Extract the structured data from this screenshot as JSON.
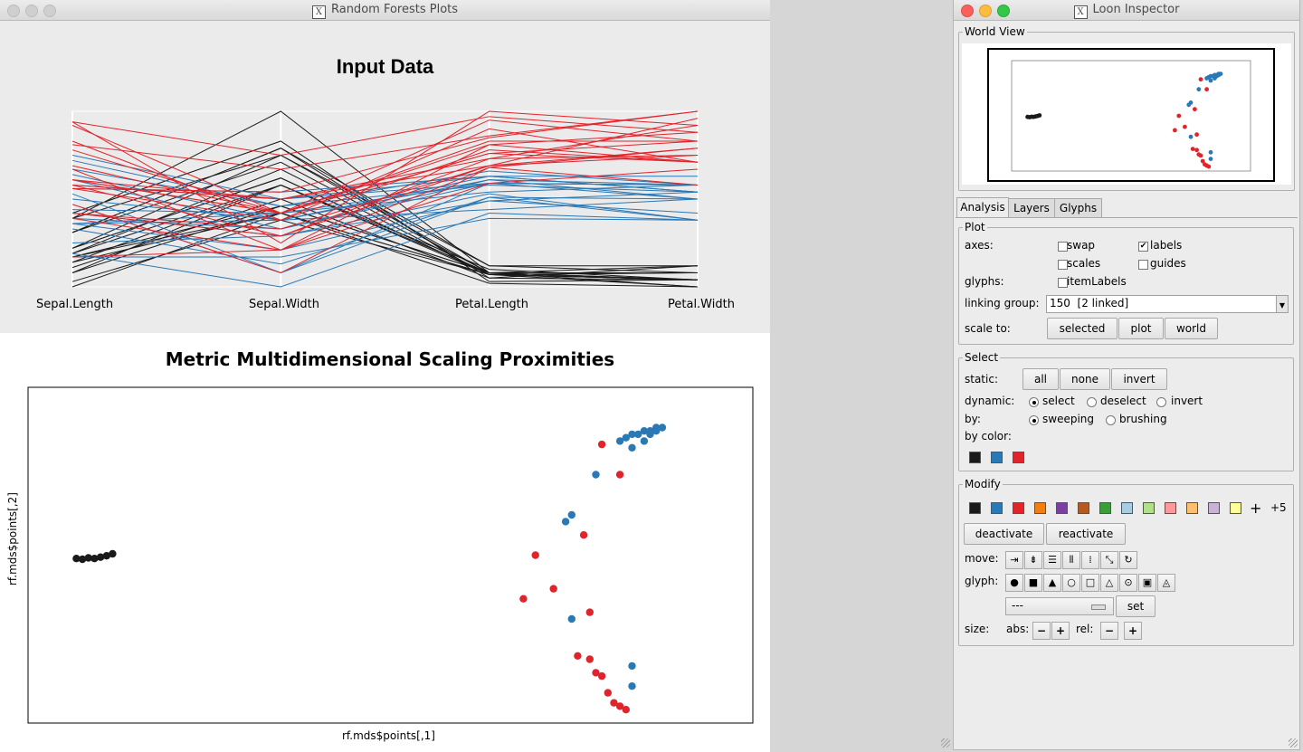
{
  "main_window": {
    "title": "Random Forests Plots",
    "top_plot": {
      "title": "Input Data",
      "axes": [
        "Sepal.Length",
        "Sepal.Width",
        "Petal.Length",
        "Petal.Width"
      ]
    },
    "bottom_plot": {
      "title": "Metric Multidimensional Scaling Proximities",
      "xlabel": "rf.mds$points[,1]",
      "ylabel": "rf.mds$points[,2]"
    }
  },
  "colors": {
    "black": "#1a1a1a",
    "blue": "#2a78b4",
    "red": "#e0242b"
  },
  "inspector": {
    "title": "Loon Inspector",
    "world_view_label": "World View",
    "tabs": [
      "Analysis",
      "Layers",
      "Glyphs"
    ],
    "plot_section": {
      "legend": "Plot",
      "axes_label": "axes:",
      "swap": "swap",
      "labels": "labels",
      "scales": "scales",
      "guides": "guides",
      "glyphs_label": "glyphs:",
      "item_labels": "itemLabels",
      "linking_label": "linking group:",
      "linking_value": "150  [2 linked]",
      "scale_to_label": "scale to:",
      "scale_buttons": [
        "selected",
        "plot",
        "world"
      ]
    },
    "select_section": {
      "legend": "Select",
      "static_label": "static:",
      "static_buttons": [
        "all",
        "none",
        "invert"
      ],
      "dynamic_label": "dynamic:",
      "dynamic_options": [
        "select",
        "deselect",
        "invert"
      ],
      "by_label": "by:",
      "by_options": [
        "sweeping",
        "brushing"
      ],
      "by_color_label": "by color:"
    },
    "modify_section": {
      "legend": "Modify",
      "palette": [
        "#1a1a1a",
        "#2a78b4",
        "#e0242b",
        "#f07f12",
        "#7a3fa0",
        "#b35a24",
        "#3b9e3b",
        "#a6cde3",
        "#b2df8a",
        "#fb9a99",
        "#fdbf6f",
        "#cab2d6",
        "#ffff99"
      ],
      "more_label": "+5",
      "deactivate": "deactivate",
      "reactivate": "reactivate",
      "move_label": "move:",
      "glyph_label": "glyph:",
      "glyph_select_value": "---",
      "set_label": "set",
      "size_label": "size:",
      "abs_label": "abs:",
      "rel_label": "rel:"
    }
  },
  "chart_data": [
    {
      "type": "line",
      "title": "Input Data",
      "x": [
        "Sepal.Length",
        "Sepal.Width",
        "Petal.Length",
        "Petal.Width"
      ],
      "series": [
        {
          "values": [
            [
              0.22,
              0.62,
              0.07,
              0.04
            ],
            [
              0.17,
              0.42,
              0.07,
              0.04
            ],
            [
              0.11,
              0.5,
              0.05,
              0.04
            ],
            [
              0.08,
              0.46,
              0.08,
              0.04
            ],
            [
              0.19,
              0.67,
              0.07,
              0.04
            ],
            [
              0.31,
              0.79,
              0.12,
              0.12
            ],
            [
              0.08,
              0.58,
              0.07,
              0.08
            ],
            [
              0.19,
              0.58,
              0.08,
              0.04
            ],
            [
              0.03,
              0.38,
              0.07,
              0.04
            ],
            [
              0.17,
              0.46,
              0.08,
              0.0
            ],
            [
              0.31,
              0.71,
              0.08,
              0.04
            ],
            [
              0.14,
              0.58,
              0.1,
              0.04
            ],
            [
              0.14,
              0.42,
              0.07,
              0.0
            ],
            [
              0.0,
              0.42,
              0.02,
              0.0
            ],
            [
              0.42,
              0.83,
              0.03,
              0.04
            ],
            [
              0.39,
              1.0,
              0.08,
              0.12
            ],
            [
              0.31,
              0.79,
              0.05,
              0.12
            ],
            [
              0.22,
              0.62,
              0.07,
              0.08
            ],
            [
              0.39,
              0.75,
              0.12,
              0.08
            ],
            [
              0.22,
              0.75,
              0.08,
              0.08
            ]
          ]
        },
        {
          "values": [
            [
              0.75,
              0.5,
              0.63,
              0.54
            ],
            [
              0.58,
              0.5,
              0.59,
              0.58
            ],
            [
              0.72,
              0.46,
              0.66,
              0.58
            ],
            [
              0.33,
              0.13,
              0.51,
              0.5
            ],
            [
              0.61,
              0.33,
              0.61,
              0.58
            ],
            [
              0.39,
              0.33,
              0.59,
              0.5
            ],
            [
              0.56,
              0.54,
              0.63,
              0.63
            ],
            [
              0.17,
              0.17,
              0.39,
              0.38
            ],
            [
              0.64,
              0.38,
              0.61,
              0.5
            ],
            [
              0.25,
              0.29,
              0.49,
              0.54
            ],
            [
              0.19,
              0.0,
              0.42,
              0.38
            ],
            [
              0.44,
              0.42,
              0.54,
              0.58
            ],
            [
              0.47,
              0.08,
              0.51,
              0.38
            ],
            [
              0.5,
              0.38,
              0.63,
              0.54
            ],
            [
              0.36,
              0.38,
              0.44,
              0.5
            ],
            [
              0.67,
              0.46,
              0.58,
              0.54
            ],
            [
              0.36,
              0.42,
              0.59,
              0.58
            ],
            [
              0.42,
              0.29,
              0.53,
              0.38
            ],
            [
              0.53,
              0.08,
              0.59,
              0.58
            ],
            [
              0.36,
              0.21,
              0.49,
              0.42
            ]
          ]
        },
        {
          "values": [
            [
              0.56,
              0.54,
              0.85,
              1.0
            ],
            [
              0.42,
              0.29,
              0.69,
              0.75
            ],
            [
              0.78,
              0.42,
              0.83,
              0.83
            ],
            [
              0.56,
              0.38,
              0.78,
              0.71
            ],
            [
              0.61,
              0.42,
              0.81,
              0.88
            ],
            [
              0.92,
              0.42,
              0.95,
              0.83
            ],
            [
              0.17,
              0.21,
              0.59,
              0.67
            ],
            [
              0.83,
              0.38,
              0.9,
              0.71
            ],
            [
              0.67,
              0.21,
              0.81,
              0.71
            ],
            [
              0.81,
              0.67,
              0.86,
              1.0
            ],
            [
              0.61,
              0.5,
              0.69,
              0.79
            ],
            [
              0.58,
              0.29,
              0.73,
              0.75
            ],
            [
              0.69,
              0.42,
              0.76,
              0.83
            ],
            [
              0.39,
              0.21,
              0.68,
              0.79
            ],
            [
              0.42,
              0.33,
              0.69,
              0.96
            ],
            [
              0.58,
              0.5,
              0.73,
              0.92
            ],
            [
              0.61,
              0.42,
              0.76,
              0.71
            ],
            [
              0.94,
              0.75,
              0.97,
              0.88
            ],
            [
              0.94,
              0.25,
              1.0,
              0.92
            ],
            [
              0.47,
              0.08,
              0.68,
              0.58
            ]
          ]
        }
      ]
    },
    {
      "type": "scatter",
      "title": "Metric Multidimensional Scaling Proximities",
      "xlabel": "rf.mds$points[,1]",
      "ylabel": "rf.mds$points[,2]",
      "series": [
        {
          "x": [
            -0.52,
            -0.51,
            -0.5,
            -0.49,
            -0.48,
            -0.47,
            -0.46
          ],
          "y": [
            -0.01,
            -0.012,
            -0.008,
            -0.01,
            -0.006,
            -0.002,
            0.004
          ]
        },
        {
          "x": [
            0.38,
            0.39,
            0.4,
            0.41,
            0.42,
            0.43,
            0.44,
            0.45,
            0.44,
            0.43,
            0.42,
            0.4,
            0.34,
            0.3,
            0.29,
            0.3,
            0.4,
            0.4
          ],
          "y": [
            0.34,
            0.35,
            0.36,
            0.36,
            0.37,
            0.37,
            0.38,
            0.38,
            0.37,
            0.36,
            0.34,
            0.32,
            0.24,
            0.12,
            0.1,
            -0.19,
            -0.33,
            -0.39
          ]
        },
        {
          "x": [
            0.35,
            0.38,
            0.32,
            0.24,
            0.22,
            0.27,
            0.33,
            0.31,
            0.33,
            0.34,
            0.35,
            0.37,
            0.38,
            0.39,
            0.36
          ],
          "y": [
            0.33,
            0.24,
            0.06,
            0.0,
            -0.13,
            -0.1,
            -0.17,
            -0.3,
            -0.31,
            -0.35,
            -0.36,
            -0.44,
            -0.45,
            -0.46,
            -0.41
          ]
        }
      ]
    }
  ]
}
